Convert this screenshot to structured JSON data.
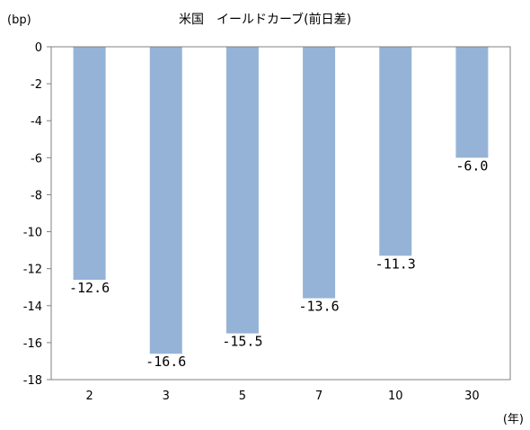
{
  "chart_data": {
    "type": "bar",
    "title": "米国　イールドカーブ(前日差)",
    "ylabel": "(bp)",
    "xlabel": "(年)",
    "categories": [
      "2",
      "3",
      "5",
      "7",
      "10",
      "30"
    ],
    "values": [
      -12.6,
      -16.6,
      -15.5,
      -13.6,
      -11.3,
      -6.0
    ],
    "data_labels": [
      "-12.6",
      "-16.6",
      "-15.5",
      "-13.6",
      "-11.3",
      "-6.0"
    ],
    "ylim": [
      -18,
      0
    ],
    "yticks": [
      0,
      -2,
      -4,
      -6,
      -8,
      -10,
      -12,
      -14,
      -16,
      -18
    ],
    "ytick_labels": [
      "0",
      "-2",
      "-4",
      "-6",
      "-8",
      "-10",
      "-12",
      "-14",
      "-16",
      "-18"
    ],
    "grid": false,
    "legend": "none",
    "colors": {
      "bar": "#95b3d7",
      "axis": "#808080"
    }
  }
}
